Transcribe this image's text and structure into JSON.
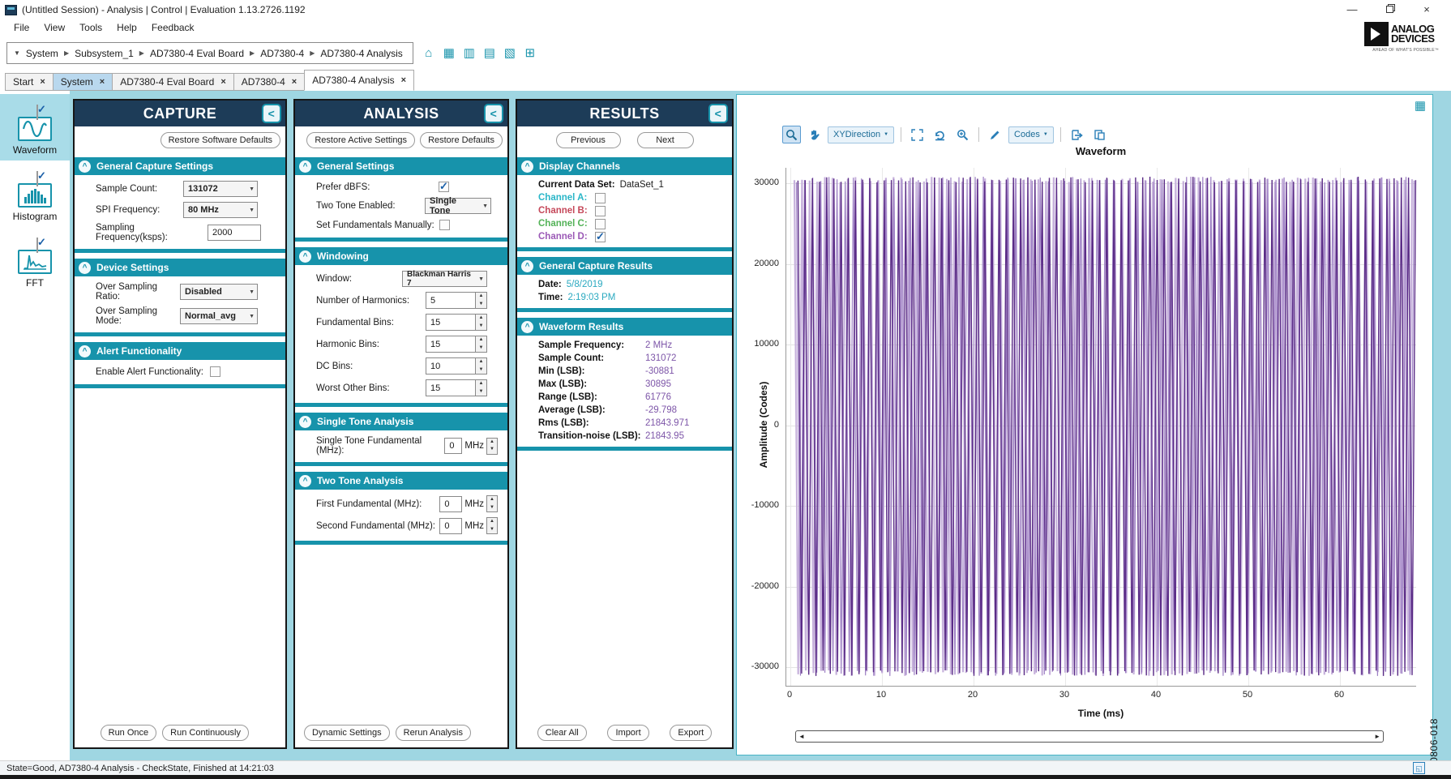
{
  "window": {
    "title": "(Untitled Session) - Analysis | Control | Evaluation 1.13.2726.1192"
  },
  "menu": {
    "items": [
      "File",
      "View",
      "Tools",
      "Help",
      "Feedback"
    ]
  },
  "logo": {
    "line1": "ANALOG",
    "line2": "DEVICES",
    "tagline": "AHEAD OF WHAT'S POSSIBLE™"
  },
  "breadcrumb": {
    "items": [
      "System",
      "Subsystem_1",
      "AD7380-4 Eval Board",
      "AD7380-4",
      "AD7380-4 Analysis"
    ]
  },
  "tabs": [
    {
      "label": "Start"
    },
    {
      "label": "System",
      "state": "selected"
    },
    {
      "label": "AD7380-4 Eval Board"
    },
    {
      "label": "AD7380-4"
    },
    {
      "label": "AD7380-4 Analysis",
      "state": "active"
    }
  ],
  "sidebar": {
    "tools": [
      {
        "label": "Waveform",
        "checked": true,
        "selected": true
      },
      {
        "label": "Histogram",
        "checked": true,
        "selected": false
      },
      {
        "label": "FFT",
        "checked": true,
        "selected": false
      }
    ]
  },
  "capture": {
    "title": "CAPTURE",
    "restore_defaults": "Restore Software Defaults",
    "general": {
      "title": "General Capture Settings",
      "sample_count": {
        "label": "Sample Count:",
        "value": "131072"
      },
      "spi_frequency": {
        "label": "SPI Frequency:",
        "value": "80 MHz"
      },
      "sampling_frequency": {
        "label": "Sampling Frequency(ksps):",
        "value": "2000"
      }
    },
    "device": {
      "title": "Device Settings",
      "osr": {
        "label": "Over Sampling Ratio:",
        "value": "Disabled"
      },
      "osm": {
        "label": "Over Sampling Mode:",
        "value": "Normal_avg"
      }
    },
    "alert": {
      "title": "Alert Functionality",
      "enable": {
        "label": "Enable Alert Functionality:",
        "checked": false
      }
    },
    "run_once": "Run Once",
    "run_continuously": "Run Continuously"
  },
  "analysis": {
    "title": "ANALYSIS",
    "restore_active": "Restore Active Settings",
    "restore_defaults": "Restore Defaults",
    "general": {
      "title": "General Settings",
      "prefer_dbfs": {
        "label": "Prefer dBFS:",
        "checked": true
      },
      "two_tone_enabled": {
        "label": "Two Tone Enabled:",
        "value": "Single Tone"
      },
      "set_fundamentals": {
        "label": "Set Fundamentals Manually:",
        "checked": false
      }
    },
    "windowing": {
      "title": "Windowing",
      "window": {
        "label": "Window:",
        "value": "Blackman Harris 7"
      },
      "harmonics": {
        "label": "Number of Harmonics:",
        "value": "5"
      },
      "fundamental_bins": {
        "label": "Fundamental Bins:",
        "value": "15"
      },
      "harmonic_bins": {
        "label": "Harmonic Bins:",
        "value": "15"
      },
      "dc_bins": {
        "label": "DC Bins:",
        "value": "10"
      },
      "worst_other_bins": {
        "label": "Worst Other Bins:",
        "value": "15"
      }
    },
    "single_tone": {
      "title": "Single Tone Analysis",
      "fundamental": {
        "label": "Single Tone Fundamental (MHz):",
        "value": "0",
        "unit": "MHz"
      }
    },
    "two_tone": {
      "title": "Two Tone Analysis",
      "first": {
        "label": "First Fundamental (MHz):",
        "value": "0",
        "unit": "MHz"
      },
      "second": {
        "label": "Second Fundamental (MHz):",
        "value": "0",
        "unit": "MHz"
      }
    },
    "dynamic_settings": "Dynamic Settings",
    "rerun_analysis": "Rerun Analysis"
  },
  "results": {
    "title": "RESULTS",
    "previous": "Previous",
    "next": "Next",
    "display_channels": {
      "title": "Display Channels",
      "current_data_set_label": "Current Data Set:",
      "current_data_set": "DataSet_1",
      "channels": [
        {
          "label": "Channel A:",
          "color": "#29b6c8",
          "checked": false
        },
        {
          "label": "Channel B:",
          "color": "#c5485a",
          "checked": false
        },
        {
          "label": "Channel C:",
          "color": "#53b257",
          "checked": false
        },
        {
          "label": "Channel D:",
          "color": "#9b59b6",
          "checked": true
        }
      ]
    },
    "general_capture": {
      "title": "General Capture Results",
      "date_label": "Date:",
      "date": "5/8/2019",
      "time_label": "Time:",
      "time": "2:19:03 PM"
    },
    "waveform_results": {
      "title": "Waveform Results",
      "rows": [
        {
          "label": "Sample Frequency:",
          "value": "2 MHz"
        },
        {
          "label": "Sample Count:",
          "value": "131072"
        },
        {
          "label": "Min (LSB):",
          "value": "-30881"
        },
        {
          "label": "Max (LSB):",
          "value": "30895"
        },
        {
          "label": "Range (LSB):",
          "value": "61776"
        },
        {
          "label": "Average (LSB):",
          "value": "-29.798"
        },
        {
          "label": "Rms (LSB):",
          "value": "21843.971"
        },
        {
          "label": "Transition-noise (LSB):",
          "value": "21843.95"
        }
      ]
    },
    "clear_all": "Clear All",
    "import": "Import",
    "export": "Export"
  },
  "chart": {
    "toolbar": {
      "xydirection": "XYDirection",
      "codes": "Codes"
    },
    "title": "Waveform",
    "xlabel": "Time (ms)",
    "ylabel": "Amplitude (Codes)",
    "yticks": [
      "30000",
      "20000",
      "10000",
      "0",
      "-10000",
      "-20000",
      "-30000"
    ],
    "xticks": [
      "0",
      "10",
      "20",
      "30",
      "40",
      "50",
      "60"
    ]
  },
  "chart_data": {
    "type": "line",
    "title": "Waveform",
    "xlabel": "Time (ms)",
    "ylabel": "Amplitude (Codes)",
    "xlim": [
      0,
      65
    ],
    "ylim": [
      -32000,
      32000
    ],
    "grid": true,
    "series": [
      {
        "name": "Channel D",
        "description": "Full-scale high-frequency sine wave rendered as dense aliased vertical bands over 0-65 ms",
        "min_lsb": -30881,
        "max_lsb": 30895,
        "range_lsb": 61776,
        "average_lsb": -29.798,
        "rms_lsb": 21843.971,
        "sample_count": 131072,
        "sample_frequency": "2 MHz"
      }
    ],
    "waveform_render": {
      "cycles": [
        81,
        76,
        86
      ],
      "colors": [
        "#c7b2dc",
        "#9d7fc4",
        "#5b2c87"
      ],
      "widths": [
        2.2,
        1.2,
        1.4
      ]
    },
    "accent_colors": {
      "teal": "#1793ab",
      "navy": "#1d3c58",
      "background": "#9fd6e2"
    }
  },
  "status": {
    "text": "State=Good, AD7380-4 Analysis - CheckState, Finished at 14:21:03"
  },
  "figure_label": "20806-018"
}
